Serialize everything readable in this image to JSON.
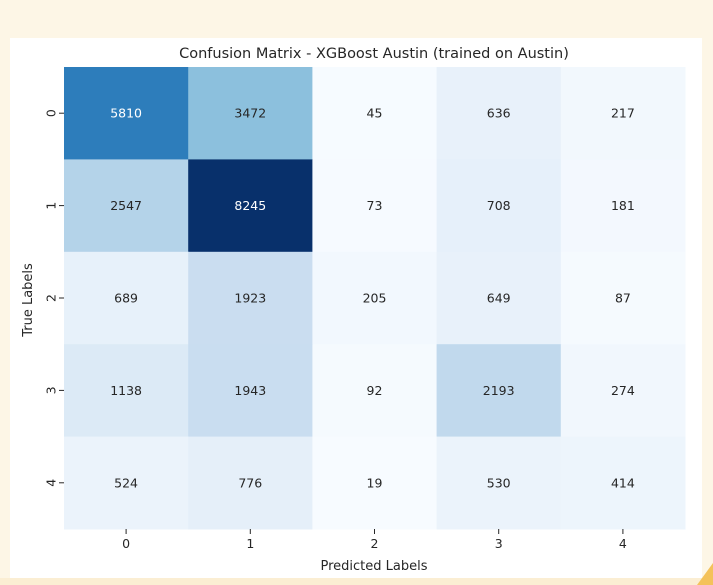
{
  "chart_data": {
    "type": "heatmap",
    "title": "Confusion Matrix - XGBoost Austin (trained on Austin)",
    "xlabel": "Predicted Labels",
    "ylabel": "True Labels",
    "x_categories": [
      "0",
      "1",
      "2",
      "3",
      "4"
    ],
    "y_categories": [
      "0",
      "1",
      "2",
      "3",
      "4"
    ],
    "values": [
      [
        5810,
        3472,
        45,
        636,
        217
      ],
      [
        2547,
        8245,
        73,
        708,
        181
      ],
      [
        689,
        1923,
        205,
        649,
        87
      ],
      [
        1138,
        1943,
        92,
        2193,
        274
      ],
      [
        524,
        776,
        19,
        530,
        414
      ]
    ],
    "colormap": "Blues",
    "value_range": [
      19,
      8245
    ],
    "colorbar": false,
    "grid": false
  },
  "colors": {
    "low": "#f7fbff",
    "high": "#08306b",
    "text_dark": "#262626",
    "text_light": "#ffffff"
  }
}
